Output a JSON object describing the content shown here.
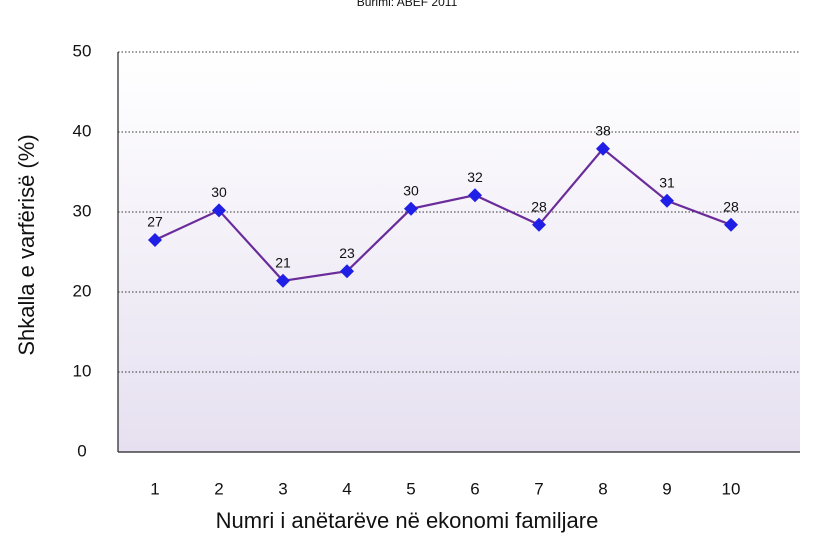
{
  "chart_data": {
    "type": "line",
    "title": "Burimi: ABEF 2011",
    "x_label": "Numri i anëtarëve në ekonomi familjare",
    "y_label": "Shkalla e varfërisë (%)",
    "categories": [
      "1",
      "2",
      "3",
      "4",
      "5",
      "6",
      "7",
      "8",
      "9",
      "10"
    ],
    "series": [
      {
        "name": "Shkalla e varfërisë",
        "line_color": "#6a2c9a",
        "marker_color": "#1f1fe6",
        "values": [
          26.5,
          30.2,
          21.4,
          22.6,
          30.4,
          32.1,
          28.4,
          37.9,
          31.4,
          28.4
        ],
        "value_labels": [
          "27",
          "30",
          "21",
          "23",
          "30",
          "32",
          "28",
          "38",
          "31",
          "28"
        ]
      }
    ],
    "ylim": [
      0,
      50
    ],
    "yticks": [
      0,
      10,
      20,
      30,
      40,
      50
    ],
    "grid": true
  }
}
